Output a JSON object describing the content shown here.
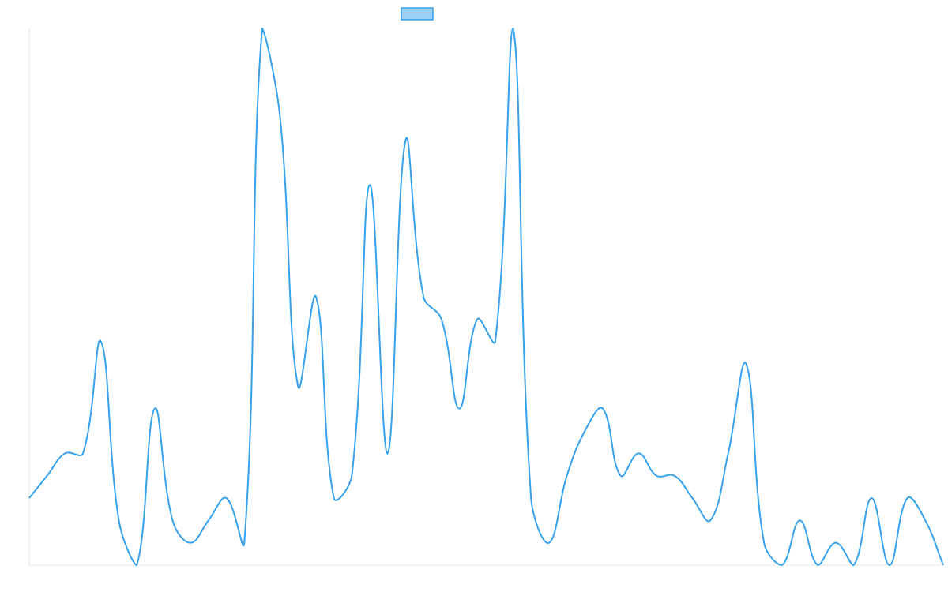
{
  "chart_data": {
    "type": "line",
    "legend": {
      "position": "top",
      "entries": [
        {
          "name": "",
          "color": "#36a2eb"
        }
      ]
    },
    "line_color": "#36a2eb",
    "legend_fill": "#9ad0f5",
    "grid": false,
    "ylim": [
      0,
      24
    ],
    "x_points": 52,
    "values": [
      3,
      4,
      5,
      5,
      10,
      2,
      0,
      7,
      2,
      1,
      2,
      3,
      1,
      24,
      20,
      8,
      12,
      3,
      4,
      17,
      5,
      19,
      12,
      11,
      7,
      11,
      10,
      24,
      3,
      1,
      4,
      6,
      7,
      4,
      5,
      4,
      4,
      3,
      2,
      5,
      9,
      1,
      0,
      2,
      0,
      1,
      0,
      3,
      0,
      3,
      2,
      0
    ]
  }
}
